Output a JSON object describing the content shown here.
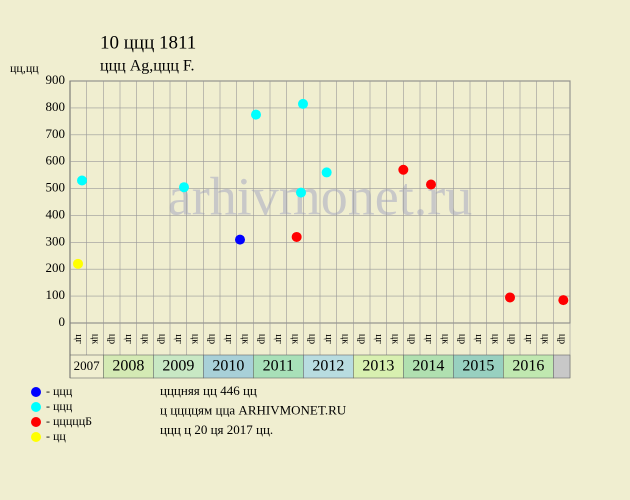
{
  "chart_data": {
    "type": "scatter",
    "title": "10 ццц 1811",
    "subtitle": "ццц Ag,ццц F.",
    "y_label": "цц,цц",
    "watermark": "arhivmonet.ru",
    "ylim": [
      0,
      900
    ],
    "yticks": [
      0,
      100,
      200,
      300,
      400,
      500,
      600,
      700,
      800,
      900
    ],
    "xlim": [
      0,
      30
    ],
    "grid": true,
    "columns": [
      "цг",
      "цк",
      "цр",
      "цг",
      "цк",
      "цр",
      "цг",
      "цк",
      "цр",
      "цг",
      "цк",
      "цр",
      "цг",
      "цк",
      "цр",
      "цг",
      "цк",
      "цр",
      "цг",
      "цк",
      "цр",
      "цг",
      "цк",
      "цр",
      "цг",
      "цк",
      "цр",
      "цг",
      "цк",
      "цр"
    ],
    "years": [
      {
        "label": "2007",
        "color": "#f0eed0"
      },
      {
        "label": "2008",
        "color": "#d4eab4"
      },
      {
        "label": "2009",
        "color": "#c8e8c4"
      },
      {
        "label": "2010",
        "color": "#a8d0d8"
      },
      {
        "label": "2011",
        "color": "#a8e0b8"
      },
      {
        "label": "2012",
        "color": "#b8dce0"
      },
      {
        "label": "2013",
        "color": "#d8f0b0"
      },
      {
        "label": "2014",
        "color": "#b0e0b0"
      },
      {
        "label": "2015",
        "color": "#98d0c0"
      },
      {
        "label": "2016",
        "color": "#c0e8b0"
      }
    ],
    "series": [
      {
        "name": "ццц",
        "color": "#0000ff",
        "x": [
          10.2
        ],
        "values": [
          310
        ]
      },
      {
        "name": "ццц",
        "color": "#00ffff",
        "x": [
          0.72,
          6.84,
          11.16,
          13.98,
          13.86,
          15.4
        ],
        "values": [
          530,
          505,
          775,
          815,
          485,
          560
        ]
      },
      {
        "name": "цццццБ",
        "color": "#ff0000",
        "x": [
          13.6,
          20,
          21.66,
          26.4,
          29.6
        ],
        "values": [
          320,
          570,
          515,
          95,
          85
        ]
      },
      {
        "name": "цц",
        "color": "#ffff00",
        "x": [
          0.48
        ],
        "values": [
          220
        ]
      }
    ],
    "notes": [
      "цццняя цц 446 цц",
      "ц ццццям цца ARHIVMONET.RU",
      "ццц ц 20 ця 2017 цц."
    ]
  }
}
